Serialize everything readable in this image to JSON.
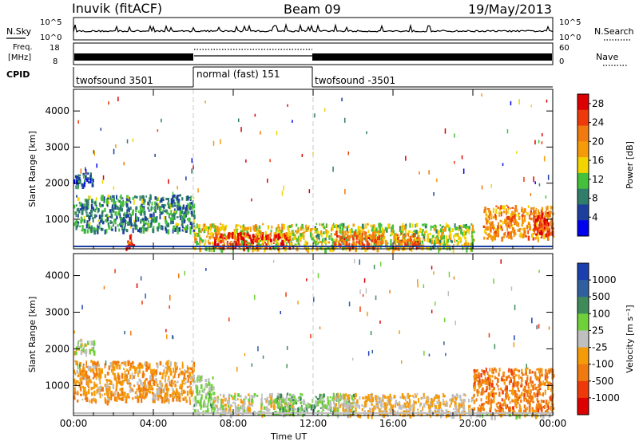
{
  "header": {
    "station": "Inuvik (fitACF)",
    "beam": "Beam 09",
    "date": "19/May/2013"
  },
  "strips": {
    "nsky_label": "N.Sky",
    "nsearch_label": "N.Search",
    "nsky_ticks": [
      "10^5",
      "10^0"
    ],
    "nsearch_ticks": [
      "10^5",
      "10^0"
    ],
    "freq_label_line1": "Freq.",
    "freq_label_line2": "[MHz]",
    "freq_ticks": [
      "18",
      "8"
    ],
    "nave_label": "Nave",
    "nave_ticks": [
      "60",
      "0"
    ],
    "cpid_label": "CPID",
    "cpid_segments": [
      {
        "label": "twofsound 3501",
        "start_hour": 0,
        "end_hour": 6
      },
      {
        "label": "normal (fast) 151",
        "start_hour": 6,
        "end_hour": 12
      },
      {
        "label": "twofsound -3501",
        "start_hour": 12,
        "end_hour": 24
      }
    ]
  },
  "colors": {
    "power": [
      "#0000ee",
      "#1c3f9e",
      "#2f7d6a",
      "#45c03a",
      "#f2d400",
      "#f59b0a",
      "#f07a10",
      "#ee3a0a",
      "#dd0000"
    ],
    "velocity": [
      "#dd0000",
      "#ee3a0a",
      "#f07a10",
      "#f59b0a",
      "#bfbfbf",
      "#6fd03a",
      "#3f8a5a",
      "#2f5f9e",
      "#1c3fb0"
    ]
  },
  "chart_data": [
    {
      "type": "heatmap",
      "name": "power",
      "xlabel": "",
      "ylabel": "Slant Range [km]",
      "x_ticks": [
        "00:00",
        "04:00",
        "08:00",
        "12:00",
        "16:00",
        "20:00",
        "00:00"
      ],
      "xlim_hours": [
        0,
        24
      ],
      "y_ticks": [
        1000,
        2000,
        3000,
        4000
      ],
      "ylim": [
        180,
        4600
      ],
      "colorbar_label": "Power [dB]",
      "colorbar_ticks": [
        "4",
        "8",
        "12",
        "16",
        "20",
        "24",
        "28"
      ],
      "colorbar_range": [
        0,
        30
      ],
      "scatter_regions": [
        {
          "t0": 0.0,
          "t1": 1.0,
          "r0": 1900,
          "r1": 2300,
          "value": 6
        },
        {
          "t0": 0.0,
          "t1": 6.0,
          "r0": 700,
          "r1": 1700,
          "value": 9
        },
        {
          "t0": 2.6,
          "t1": 3.0,
          "r0": 200,
          "r1": 600,
          "value": 26
        },
        {
          "t0": 6.0,
          "t1": 12.0,
          "r0": 200,
          "r1": 900,
          "value": 16
        },
        {
          "t0": 7.0,
          "t1": 10.8,
          "r0": 250,
          "r1": 650,
          "value": 27
        },
        {
          "t0": 12.0,
          "t1": 20.0,
          "r0": 200,
          "r1": 900,
          "value": 14
        },
        {
          "t0": 13.0,
          "t1": 15.5,
          "r0": 250,
          "r1": 700,
          "value": 22
        },
        {
          "t0": 16.0,
          "t1": 17.5,
          "r0": 250,
          "r1": 650,
          "value": 22
        },
        {
          "t0": 20.5,
          "t1": 24.0,
          "r0": 500,
          "r1": 1400,
          "value": 20
        },
        {
          "t0": 23.0,
          "t1": 24.0,
          "r0": 600,
          "r1": 1200,
          "value": 26
        }
      ]
    },
    {
      "type": "heatmap",
      "name": "velocity",
      "xlabel": "Time UT",
      "ylabel": "Slant Range [km]",
      "x_ticks": [
        "00:00",
        "04:00",
        "08:00",
        "12:00",
        "16:00",
        "20:00",
        "00:00"
      ],
      "xlim_hours": [
        0,
        24
      ],
      "y_ticks": [
        1000,
        2000,
        3000,
        4000
      ],
      "ylim": [
        180,
        4600
      ],
      "colorbar_label": "Velocity [m s⁻¹]",
      "colorbar_ticks": [
        "1000",
        "500",
        "100",
        "25",
        "-25",
        "-100",
        "-500",
        "-1000"
      ],
      "colorbar_range": [
        -1200,
        1200
      ],
      "scatter_regions": [
        {
          "t0": 0.0,
          "t1": 1.0,
          "r0": 1900,
          "r1": 2300,
          "value": 0
        },
        {
          "t0": 0.0,
          "t1": 6.0,
          "r0": 600,
          "r1": 1700,
          "value": -300
        },
        {
          "t0": 6.0,
          "t1": 7.0,
          "r0": 300,
          "r1": 1300,
          "value": 200
        },
        {
          "t0": 7.0,
          "t1": 11.0,
          "r0": 250,
          "r1": 800,
          "value": 0
        },
        {
          "t0": 10.0,
          "t1": 14.0,
          "r0": 250,
          "r1": 800,
          "value": 300
        },
        {
          "t0": 13.0,
          "t1": 20.0,
          "r0": 200,
          "r1": 800,
          "value": -150
        },
        {
          "t0": 20.0,
          "t1": 24.0,
          "r0": 300,
          "r1": 1500,
          "value": -500
        },
        {
          "t0": 20.0,
          "t1": 24.0,
          "r0": 180,
          "r1": 300,
          "value": 0
        }
      ]
    }
  ]
}
